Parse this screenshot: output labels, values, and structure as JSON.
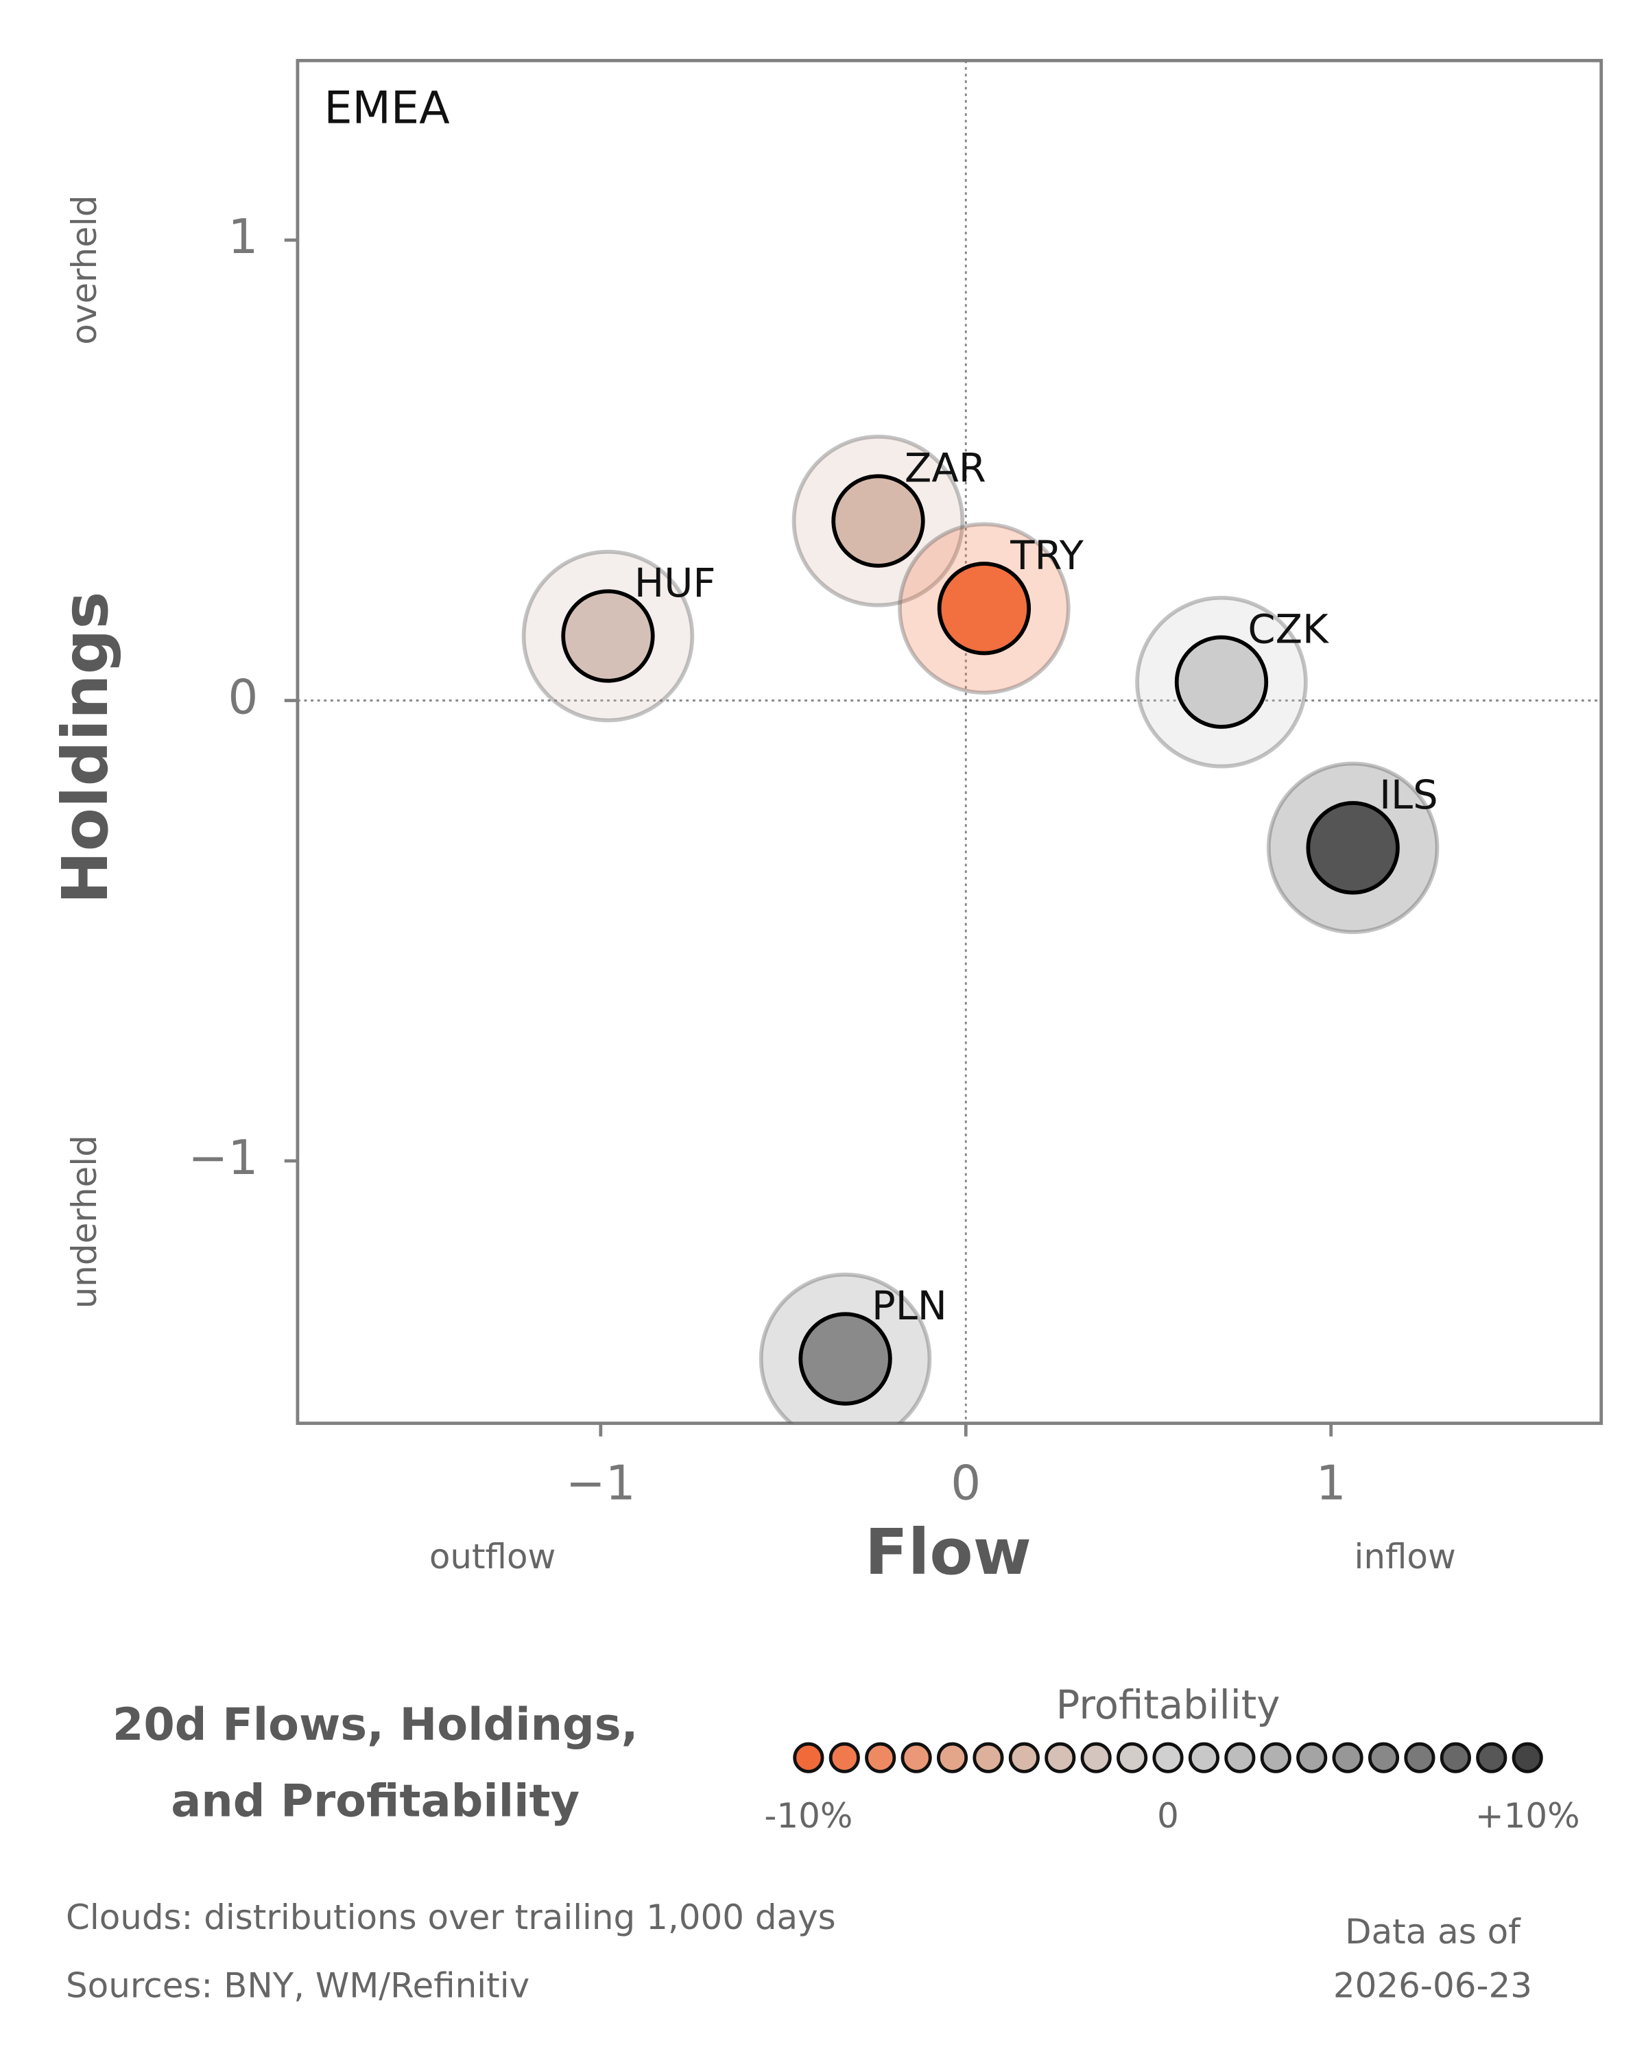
{
  "chart_data": {
    "type": "scatter",
    "panel_label": "EMEA",
    "title": [
      "20d Flows, Holdings,",
      "and Profitability"
    ],
    "xlabel": "Flow",
    "ylabel": "Holdings",
    "x_annotations": [
      "outflow",
      "inflow"
    ],
    "y_annotations": [
      "overheld",
      "underheld"
    ],
    "xlim": [
      -1.83,
      1.74
    ],
    "ylim": [
      -1.57,
      1.39
    ],
    "xticks": [
      {
        "value": -1,
        "label": "−1"
      },
      0,
      1
    ],
    "yticks": [
      {
        "value": -1,
        "label": "−1"
      },
      0,
      1
    ],
    "points": {
      "labels": [
        "HUF",
        "ZAR",
        "TRY",
        "CZK",
        "ILS",
        "PLN"
      ],
      "x": [
        -0.98,
        -0.24,
        0.05,
        0.7,
        1.06,
        -0.33
      ],
      "values": [
        0.14,
        0.39,
        0.2,
        0.04,
        -0.32,
        -1.43
      ],
      "colors": [
        "#d5c0b8",
        "#d6b9ab",
        "#f26f3f",
        "#cccccc",
        "#555555",
        "#8a8a8a"
      ]
    },
    "colorbar": {
      "title": "Profitability",
      "lim": [
        -10,
        10
      ],
      "colors": [
        "#f06a3a",
        "#f07a4e",
        "#ee8a62",
        "#ea9877",
        "#e4a68b",
        "#ddb09c",
        "#d8b9aa",
        "#d6c0b5",
        "#d4c6bf",
        "#d3cdc9",
        "#d0d0d0",
        "#c8c8c8",
        "#bdbdbd",
        "#b1b1b1",
        "#a4a4a4",
        "#979797",
        "#888888",
        "#797979",
        "#686868",
        "#575757",
        "#444444"
      ],
      "ticks": [
        {
          "value": -10,
          "label": "-10%"
        },
        0,
        {
          "value": 10,
          "label": "+10%"
        }
      ]
    },
    "notes": [
      "Clouds:  distributions over trailing 1,000 days",
      "Sources:  BNY, WM/Refinitiv"
    ],
    "as_of": [
      "Data as of",
      "2026-06-23"
    ]
  }
}
